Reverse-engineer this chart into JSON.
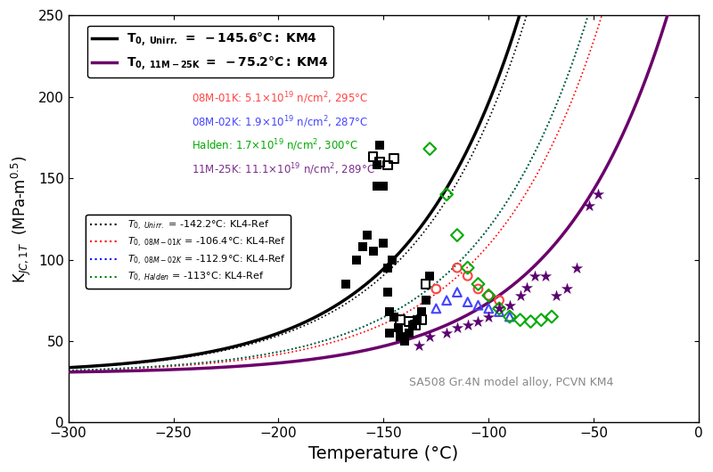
{
  "xlim": [
    -300,
    0
  ],
  "ylim": [
    0,
    250
  ],
  "xticks": [
    -300,
    -250,
    -200,
    -150,
    -100,
    -50,
    0
  ],
  "yticks": [
    0,
    50,
    100,
    150,
    200,
    250
  ],
  "T0_unirr": -145.6,
  "T0_11M25K": -75.2,
  "T0_ref_unirr": -142.2,
  "T0_ref_08M01K": -106.4,
  "T0_ref_08M02K": -112.9,
  "T0_ref_halden": -113.0,
  "annotation_lines": [
    {
      "text": "08M-01K: 5.1×10$^{19}$ n/cm$^2$, 295°C",
      "color": "#FF4444"
    },
    {
      "text": "08M-02K: 1.9×10$^{19}$ n/cm$^2$, 287°C",
      "color": "#4444FF"
    },
    {
      "text": "Halden: 1.7×10$^{19}$ n/cm$^2$, 300°C",
      "color": "#00AA00"
    },
    {
      "text": "11M-25K: 11.1×10$^{19}$ n/cm$^2$, 289°C",
      "color": "#7B2D8B"
    }
  ],
  "footnote": "SA508 Gr.4N model alloy, PCVN KM4",
  "scatter_unirr_filled": {
    "x": [
      -168,
      -163,
      -160,
      -158,
      -155,
      -153,
      -153,
      -152,
      -150,
      -150,
      -148,
      -148,
      -147,
      -147,
      -146,
      -145,
      -143,
      -142,
      -140,
      -138,
      -136,
      -134,
      -132,
      -130,
      -128
    ],
    "y": [
      85,
      100,
      108,
      115,
      105,
      145,
      158,
      170,
      145,
      110,
      95,
      80,
      68,
      55,
      100,
      65,
      58,
      53,
      50,
      55,
      60,
      63,
      68,
      75,
      90
    ],
    "marker": "s",
    "color": "black",
    "ms": 7
  },
  "scatter_unirr_open": {
    "x": [
      -155,
      -152,
      -148,
      -145,
      -142,
      -138,
      -135,
      -132,
      -130
    ],
    "y": [
      163,
      160,
      158,
      162,
      63,
      62,
      60,
      63,
      85
    ],
    "marker": "s",
    "color": "black",
    "ms": 7
  },
  "scatter_08M01K": {
    "x": [
      -125,
      -115,
      -110,
      -105,
      -100,
      -95
    ],
    "y": [
      82,
      95,
      90,
      82,
      78,
      75
    ],
    "marker": "o",
    "color": "#FF4444",
    "ms": 7
  },
  "scatter_08M02K": {
    "x": [
      -125,
      -120,
      -115,
      -110,
      -105,
      -100,
      -95,
      -90
    ],
    "y": [
      70,
      75,
      80,
      74,
      72,
      70,
      68,
      65
    ],
    "marker": "^",
    "color": "#4444FF",
    "ms": 7
  },
  "scatter_halden": {
    "x": [
      -128,
      -120,
      -115,
      -110,
      -105,
      -100,
      -95,
      -90,
      -85,
      -80,
      -75,
      -70
    ],
    "y": [
      168,
      140,
      115,
      95,
      85,
      78,
      70,
      65,
      63,
      62,
      63,
      65
    ],
    "marker": "D",
    "color": "#00AA00",
    "ms": 7
  },
  "scatter_11M25K": {
    "x": [
      -133,
      -128,
      -120,
      -115,
      -110,
      -105,
      -100,
      -95,
      -90,
      -85,
      -82,
      -78,
      -73,
      -68,
      -63,
      -58,
      -52,
      -48
    ],
    "y": [
      47,
      53,
      55,
      58,
      60,
      62,
      65,
      70,
      72,
      78,
      83,
      90,
      90,
      78,
      82,
      95,
      133,
      140
    ],
    "marker": "*",
    "color": "#5B0070",
    "ms": 10
  }
}
